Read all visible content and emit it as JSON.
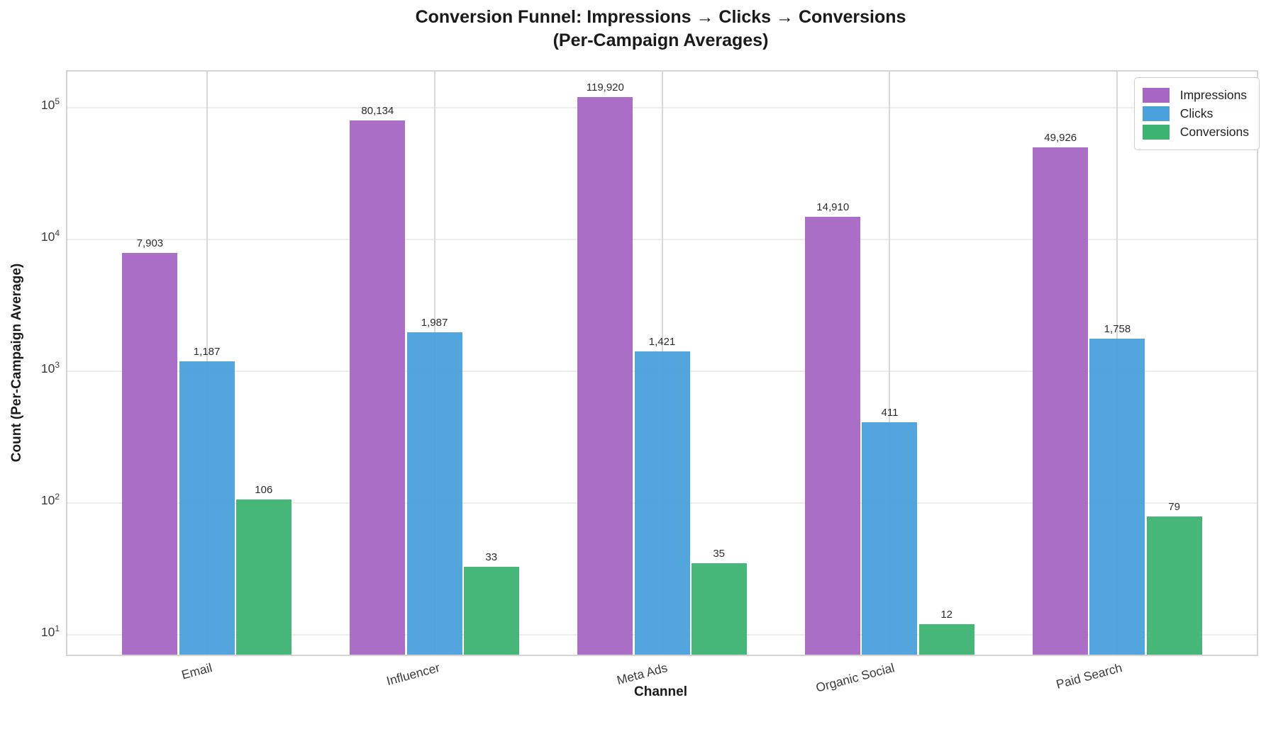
{
  "title": {
    "line1": "Conversion Funnel: Impressions → Clicks → Conversions",
    "line2": "(Per-Campaign Averages)"
  },
  "chart_data": {
    "type": "bar",
    "title": "Conversion Funnel: Impressions → Clicks → Conversions (Per-Campaign Averages)",
    "xlabel": "Channel",
    "ylabel": "Count (Per-Campaign Average)",
    "categories": [
      "Email",
      "Influencer",
      "Meta Ads",
      "Organic Social",
      "Paid Search"
    ],
    "series": [
      {
        "name": "Impressions",
        "color": "#A766C4",
        "values": [
          7903,
          80134,
          119920,
          14910,
          49926
        ]
      },
      {
        "name": "Clicks",
        "color": "#4AA1DB",
        "values": [
          1187,
          1987,
          1421,
          411,
          1758
        ]
      },
      {
        "name": "Conversions",
        "color": "#3CB371",
        "values": [
          106,
          33,
          35,
          12,
          79
        ]
      }
    ],
    "value_labels_shown": [
      "7,903",
      "1,187",
      "106",
      "80,134",
      "1,987",
      "33",
      "119,920",
      "1,421",
      "35",
      "14,910",
      "411",
      "12",
      "49,926",
      "1,758",
      "79"
    ],
    "yscale": "log",
    "y_tick_exponents": [
      1,
      2,
      3,
      4,
      5
    ],
    "ylim_log10": [
      0.8495,
      5.2747
    ],
    "grid": true,
    "legend_position": "upper right",
    "legend_entries": [
      "Impressions",
      "Clicks",
      "Conversions"
    ]
  }
}
